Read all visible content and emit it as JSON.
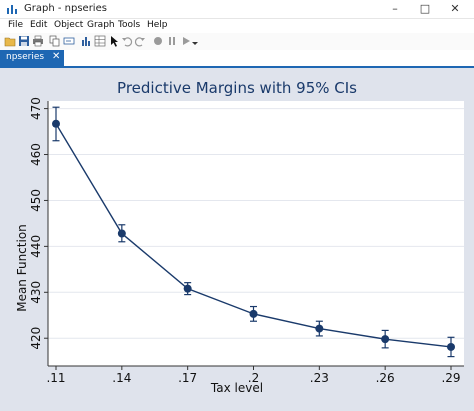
{
  "window": {
    "title": "Graph - npseries",
    "minimize_icon": "minimize-icon",
    "maximize_icon": "maximize-icon",
    "close_icon": "close-icon"
  },
  "menu": [
    "File",
    "Edit",
    "Object",
    "Graph",
    "Tools",
    "Help"
  ],
  "toolbar": {
    "icons": [
      "open-icon",
      "save-icon",
      "print-icon",
      "copy-icon",
      "rename-icon",
      "graph-editor-icon",
      "data-editor-icon",
      "pointer-icon",
      "undo-icon",
      "redo-icon",
      "record-icon",
      "pause-icon",
      "play-icon",
      "dropdown-icon"
    ]
  },
  "tabs": [
    {
      "label": "npseries",
      "active": true
    }
  ],
  "chart_data": {
    "type": "line",
    "title": "Predictive Margins with 95% CIs",
    "xlabel": "Tax level",
    "ylabel": "Mean Function",
    "categories": [
      ".11",
      ".14",
      ".17",
      ".2",
      ".23",
      ".26",
      ".29"
    ],
    "x": [
      0.11,
      0.14,
      0.17,
      0.2,
      0.23,
      0.26,
      0.29
    ],
    "values": [
      466.7,
      442.8,
      430.8,
      425.3,
      422.1,
      419.8,
      418.1
    ],
    "ci_lower": [
      463.0,
      441.0,
      429.5,
      423.7,
      420.5,
      417.9,
      416.0
    ],
    "ci_upper": [
      470.3,
      444.7,
      432.1,
      426.9,
      423.7,
      421.7,
      420.2
    ],
    "xlim": [
      0.11,
      0.29
    ],
    "ylim": [
      417,
      471
    ],
    "yticks": [
      420,
      430,
      440,
      450,
      460,
      470
    ],
    "grid": true,
    "line_color": "#1a3a6b",
    "plot_background": "#ffffff",
    "outer_background": "#dfe3ec"
  }
}
